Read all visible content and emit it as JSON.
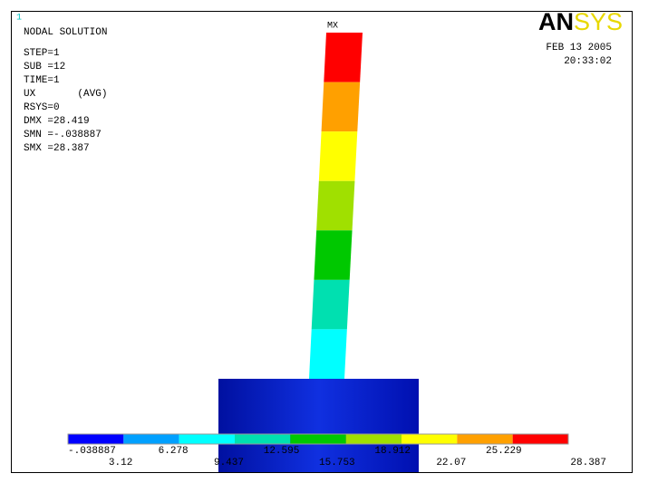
{
  "window_number": "1",
  "info": [
    "NODAL SOLUTION",
    "STEP=1",
    "SUB =12",
    "TIME=1",
    "UX       (AVG)",
    "RSYS=0",
    "DMX =28.419",
    "SMN =-.038887",
    "SMX =28.387"
  ],
  "logo": {
    "bold": "AN",
    "light": "SYS"
  },
  "date": "FEB 13 2005",
  "time": "20:33:02",
  "max_label": "MX",
  "legend": {
    "labels": [
      "-.038887",
      "3.12",
      "6.278",
      "9.437",
      "12.595",
      "15.753",
      "18.912",
      "22.07",
      "25.229",
      "28.387"
    ],
    "colors": [
      "#0000ff",
      "#00a0ff",
      "#00ffff",
      "#00e0b0",
      "#00c800",
      "#a0e000",
      "#ffff00",
      "#ffa000",
      "#ff0000"
    ]
  }
}
